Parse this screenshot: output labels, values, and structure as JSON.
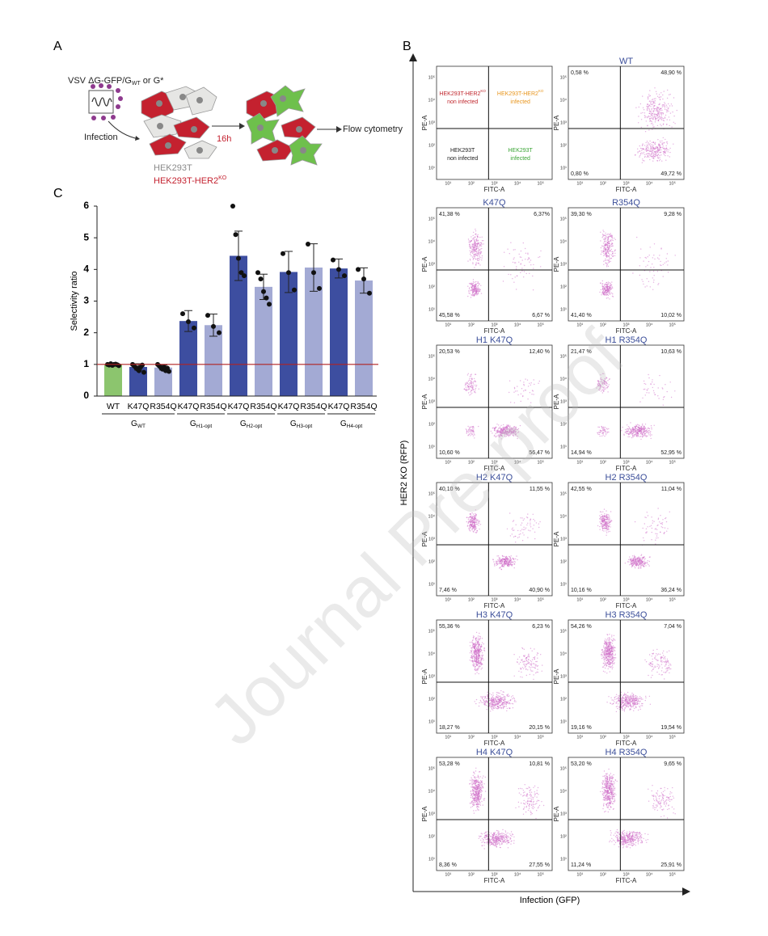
{
  "panel_a": {
    "label": "A",
    "virus": "VSV ΔG-GFP/G",
    "virus_sub": "WT",
    "virus_suffix": "or G*",
    "infection": "Infection",
    "time": "16h",
    "readout": "Flow cytometry",
    "cell_wt": "HEK293T",
    "cell_ko": "HEK293T-HER2",
    "cell_ko_sup": "KO"
  },
  "chart_data": {
    "type": "bar",
    "label": "C",
    "y_label": "Selectivity ratio",
    "ylim": [
      0,
      6
    ],
    "yticks": [
      0,
      1,
      2,
      3,
      4,
      5,
      6
    ],
    "reference_line": 1,
    "reference_color": "#b22222",
    "groups": [
      {
        "name": "G",
        "sub": "WT",
        "bars": [
          {
            "category": "WT",
            "color": "#8cc56e",
            "value": 1.0,
            "error": 0.04,
            "points": [
              1.0,
              0.98,
              1.02,
              0.97,
              1.0,
              1.01,
              0.99,
              0.96
            ]
          },
          {
            "category": "K47Q",
            "color": "#3d4ea0",
            "value": 0.92,
            "error": 0.1,
            "points": [
              1.0,
              0.95,
              0.9,
              0.85,
              0.8,
              0.92,
              0.98,
              0.75
            ]
          },
          {
            "category": "R354Q",
            "color": "#a3aad4",
            "value": 0.9,
            "error": 0.08,
            "points": [
              1.0,
              0.95,
              0.9,
              0.85,
              0.92,
              0.8,
              0.88,
              0.78
            ]
          }
        ]
      },
      {
        "name": "G",
        "sub": "H1-opt",
        "bars": [
          {
            "category": "K47Q",
            "color": "#3d4ea0",
            "value": 2.37,
            "error": 0.33,
            "points": [
              2.6,
              2.35,
              2.15
            ]
          },
          {
            "category": "R354Q",
            "color": "#a3aad4",
            "value": 2.24,
            "error": 0.35,
            "points": [
              2.55,
              2.2,
              2.0
            ]
          }
        ]
      },
      {
        "name": "G",
        "sub": "H2-opt",
        "bars": [
          {
            "category": "K47Q",
            "color": "#3d4ea0",
            "value": 4.43,
            "error": 0.78,
            "points": [
              6.0,
              5.1,
              4.35,
              3.9,
              3.8
            ]
          },
          {
            "category": "R354Q",
            "color": "#a3aad4",
            "value": 3.45,
            "error": 0.4,
            "points": [
              3.9,
              3.7,
              3.3,
              3.1,
              2.9
            ]
          }
        ]
      },
      {
        "name": "G",
        "sub": "H3-opt",
        "bars": [
          {
            "category": "K47Q",
            "color": "#3d4ea0",
            "value": 3.92,
            "error": 0.65,
            "points": [
              4.5,
              3.9,
              3.35
            ]
          },
          {
            "category": "R354Q",
            "color": "#a3aad4",
            "value": 4.06,
            "error": 0.75,
            "points": [
              4.8,
              3.9,
              3.4
            ]
          }
        ]
      },
      {
        "name": "G",
        "sub": "H4-opt",
        "bars": [
          {
            "category": "K47Q",
            "color": "#3d4ea0",
            "value": 4.03,
            "error": 0.3,
            "points": [
              4.3,
              4.0,
              3.8
            ]
          },
          {
            "category": "R354Q",
            "color": "#a3aad4",
            "value": 3.65,
            "error": 0.4,
            "points": [
              4.0,
              3.7,
              3.25
            ]
          }
        ]
      }
    ]
  },
  "panel_b": {
    "label": "B",
    "y_axis_title": "HER2 KO (RFP)",
    "x_axis_title": "Infection (GFP)",
    "x_label": "FITC-A",
    "y_label": "PE-A",
    "ticks": [
      "10¹",
      "10²",
      "10³",
      "10⁴",
      "10⁵"
    ],
    "dot_color": "#d070c8",
    "legend_plot": [
      {
        "line1": "HEK293T-HER2",
        "sup": "KO",
        "line2": "non infected",
        "color": "#c0272d"
      },
      {
        "line1": "HEK293T-HER2",
        "sup": "KO",
        "line2": "infected",
        "color": "#e8951c"
      },
      {
        "line1": "HEK293T",
        "line2": "non infected",
        "color": "#222222"
      },
      {
        "line1": "HEK293T",
        "line2": "infected",
        "color": "#3aa535"
      }
    ],
    "plots": [
      {
        "title": "WT",
        "ul": "0,58 %",
        "ur": "48,90 %",
        "ll": "0,80 %",
        "lr": "49,72 %"
      },
      {
        "title": "K47Q",
        "ul": "41,38 %",
        "ur": "6,37%",
        "ll": "45,58 %",
        "lr": "6,67 %"
      },
      {
        "title": "R354Q",
        "ul": "39,30 %",
        "ur": "9,28 %",
        "ll": "41,40 %",
        "lr": "10,02 %"
      },
      {
        "title": "H1 K47Q",
        "ul": "20,53 %",
        "ur": "12,40 %",
        "ll": "10,60 %",
        "lr": "56,47 %"
      },
      {
        "title": "H1 R354Q",
        "ul": "21,47 %",
        "ur": "10,63 %",
        "ll": "14,94 %",
        "lr": "52,95 %"
      },
      {
        "title": "H2 K47Q",
        "ul": "40,10 %",
        "ur": "11,55 %",
        "ll": "7,46 %",
        "lr": "40,90 %"
      },
      {
        "title": "H2 R354Q",
        "ul": "42,55 %",
        "ur": "11,04 %",
        "ll": "10,16 %",
        "lr": "36,24 %"
      },
      {
        "title": "H3 K47Q",
        "ul": "55,36 %",
        "ur": "6,23 %",
        "ll": "18,27 %",
        "lr": "20,15 %"
      },
      {
        "title": "H3 R354Q",
        "ul": "54,26 %",
        "ur": "7,04 %",
        "ll": "19,16 %",
        "lr": "19,54 %"
      },
      {
        "title": "H4 K47Q",
        "ul": "53,28 %",
        "ur": "10,81 %",
        "ll": "8,36 %",
        "lr": "27,55 %"
      },
      {
        "title": "H4 R354Q",
        "ul": "53,20 %",
        "ur": "9,65 %",
        "ll": "11,24 %",
        "lr": "25,91 %"
      }
    ]
  },
  "watermark": "Journal Pre-proof"
}
